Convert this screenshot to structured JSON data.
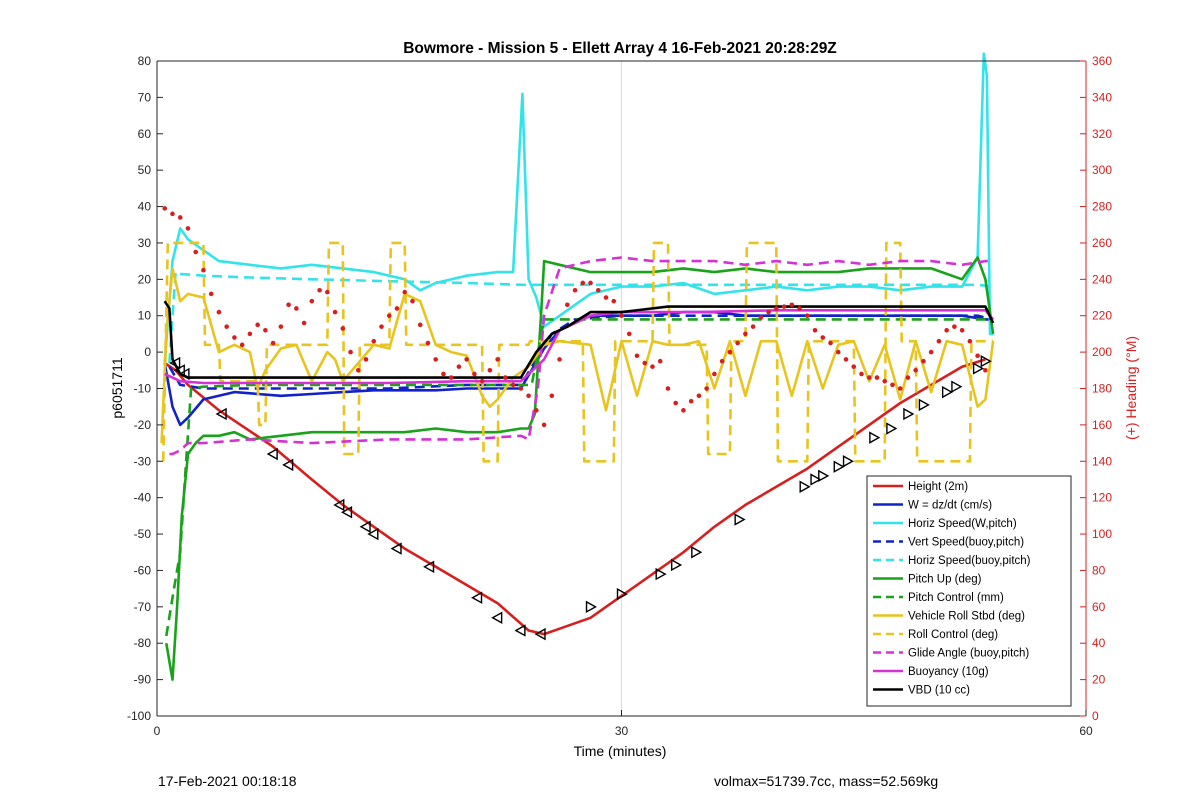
{
  "chart_data": {
    "type": "line",
    "title": "Bowmore - Mission 5 - Ellett Array 4 16-Feb-2021 20:28:29Z",
    "xlabel": "Time (minutes)",
    "ylabel_left": "p6051711",
    "ylabel_right": "(+) Heading (°M)",
    "xlim": [
      0,
      60
    ],
    "ylim_left": [
      -100,
      80
    ],
    "ylim_right": [
      0,
      360
    ],
    "xticks": [
      0,
      30,
      60
    ],
    "yticks_left": [
      80,
      70,
      60,
      50,
      40,
      30,
      20,
      10,
      0,
      -10,
      -20,
      -30,
      -40,
      -50,
      -60,
      -70,
      -80,
      -90,
      -100
    ],
    "yticks_right": [
      360,
      340,
      320,
      300,
      280,
      260,
      240,
      220,
      200,
      180,
      160,
      140,
      120,
      100,
      80,
      60,
      40,
      20,
      0
    ],
    "grid": "x-only",
    "legend_position": "lower-right",
    "colors": {
      "red": "#d71f1f",
      "blue": "#1123c8",
      "cyan": "#33e3ea",
      "green": "#1aa21a",
      "yellow": "#e7c41e",
      "magenta": "#d531d5",
      "black": "#000000",
      "heading": "#d71f1f",
      "right_axis": "#d71f1f"
    },
    "series": [
      {
        "name": "Height (2m)",
        "color": "#d71f1f",
        "dash": false,
        "x": [
          0.5,
          1.2,
          2,
          4,
          7.5,
          10,
          12,
          14,
          16,
          18,
          22,
          24,
          25,
          26,
          28,
          30,
          32,
          34,
          36,
          38,
          40,
          42,
          44,
          46,
          48,
          50,
          52,
          53.5
        ],
        "y": [
          -3,
          -5,
          -9,
          -16,
          -26,
          -35,
          -42,
          -48,
          -54,
          -59,
          -69,
          -76.5,
          -77.5,
          -76,
          -73,
          -67,
          -61,
          -55,
          -48,
          -42,
          -37,
          -32,
          -26,
          -20,
          -14,
          -9,
          -4,
          -2
        ]
      },
      {
        "name": "W = dz/dt (cm/s)",
        "color": "#1123c8",
        "dash": false,
        "x": [
          0.5,
          1,
          1.5,
          2,
          3,
          5,
          8,
          10,
          12,
          14,
          16,
          18,
          20,
          22,
          23.5,
          25,
          26,
          28,
          30,
          32,
          34,
          36,
          38,
          40,
          42,
          44,
          46,
          48,
          50,
          52,
          53.5,
          54
        ],
        "y": [
          -3,
          -15,
          -20,
          -18,
          -13,
          -11,
          -12,
          -11.5,
          -11,
          -10.5,
          -10.5,
          -10.5,
          -10,
          -10,
          -10,
          1,
          6,
          10,
          10,
          10,
          11,
          11,
          10,
          10,
          10,
          10,
          10,
          10,
          10,
          10,
          9,
          9
        ]
      },
      {
        "name": "Horiz Speed(W,pitch)",
        "color": "#33e3ea",
        "dash": false,
        "x": [
          0.5,
          1,
          1.5,
          2,
          3,
          4,
          6,
          8,
          10,
          12,
          14,
          16,
          17,
          18,
          20,
          22,
          23,
          23.6,
          24,
          24.5,
          25,
          26,
          28,
          30,
          32,
          34,
          36,
          38,
          40,
          42,
          44,
          46,
          48,
          50,
          52,
          53,
          53.4,
          53.6,
          53.8,
          54
        ],
        "y": [
          -3,
          25,
          34,
          31,
          28,
          25,
          24,
          23,
          24,
          23,
          22,
          20,
          17,
          19,
          21,
          22,
          22,
          71,
          20,
          15,
          7,
          10,
          16,
          18,
          18,
          19,
          16,
          17,
          18,
          17,
          18,
          18,
          17,
          18,
          18,
          26,
          82,
          76,
          5,
          5
        ]
      },
      {
        "name": "Vert Speed(buoy,pitch)",
        "color": "#1123c8",
        "dash": true,
        "x": [
          0.8,
          1.5,
          3,
          6,
          10,
          15,
          20,
          23.5,
          24.5,
          25.5,
          27,
          30,
          35,
          40,
          45,
          50,
          53,
          54
        ],
        "y": [
          -4,
          -9,
          -10,
          -10,
          -10,
          -10,
          -9,
          -9,
          -2,
          5,
          9,
          10,
          10,
          10,
          10,
          10,
          10,
          9
        ]
      },
      {
        "name": "Horiz Speed(buoy,pitch)",
        "color": "#33e3ea",
        "dash": true,
        "x": [
          0.8,
          1.2,
          1.5,
          3,
          6,
          10,
          15,
          20,
          23.5,
          24.5,
          30,
          35,
          40,
          45,
          50,
          53,
          54
        ],
        "y": [
          -3,
          22,
          21.5,
          21,
          20.5,
          20,
          19.5,
          19,
          18.5,
          18.5,
          18.5,
          18.5,
          18.5,
          18.5,
          18.5,
          18.5,
          18
        ]
      },
      {
        "name": "Pitch Up (deg)",
        "color": "#1aa21a",
        "dash": false,
        "x": [
          0.6,
          1,
          1.3,
          1.6,
          2,
          2.5,
          3,
          4,
          5,
          6,
          8,
          10,
          12,
          14,
          16,
          18,
          20,
          22,
          23.5,
          24,
          24.4,
          24.8,
          25,
          26,
          28,
          30,
          32,
          34,
          36,
          38,
          40,
          42,
          44,
          46,
          48,
          50,
          52,
          53,
          53.5,
          54
        ],
        "y": [
          -80,
          -90,
          -70,
          -45,
          -28,
          -25,
          -23,
          -23,
          -22,
          -24,
          -23,
          -22,
          -22,
          -22,
          -22,
          -21,
          -22,
          -22,
          -21,
          -21,
          -17,
          10,
          25,
          24,
          22,
          22,
          22,
          23,
          22,
          23,
          22,
          22,
          22,
          23,
          23,
          23,
          20,
          26,
          20,
          5
        ]
      },
      {
        "name": "Pitch Control (mm)",
        "color": "#1aa21a",
        "dash": true,
        "x": [
          0.6,
          1.1,
          1.5,
          1.8,
          2.2,
          3,
          6,
          10,
          15,
          20,
          23.5,
          24.2,
          25,
          27,
          30,
          35,
          40,
          45,
          50,
          53,
          54
        ],
        "y": [
          -78,
          -65,
          -55,
          -35,
          -10,
          -9.5,
          -9,
          -9,
          -9,
          -9,
          -9,
          -9,
          9,
          9,
          9,
          9,
          9,
          9,
          9,
          9,
          9
        ]
      },
      {
        "name": "Vehicle Roll Stbd (deg)",
        "color": "#e7c41e",
        "dash": false,
        "x": [
          0.3,
          0.6,
          1,
          1.5,
          2,
          3,
          4,
          5,
          6,
          6.5,
          7,
          8,
          9,
          10,
          11,
          11.5,
          12,
          13,
          14,
          15,
          16,
          17,
          18,
          19,
          20,
          21,
          21.5,
          22,
          23,
          24,
          25,
          26,
          28,
          29,
          30,
          31,
          32,
          33,
          34,
          35,
          36,
          37,
          38,
          39,
          40,
          41,
          42,
          43,
          44,
          45,
          46,
          47,
          48,
          49,
          50,
          51,
          52,
          53,
          53.5,
          54
        ],
        "y": [
          -25,
          5,
          23,
          14,
          16,
          15,
          0,
          2,
          0,
          -10,
          -5,
          1,
          2,
          -8,
          0,
          -2,
          -8,
          -3,
          2,
          1,
          16,
          14,
          2,
          0,
          -1,
          -12,
          -15,
          -13,
          -7,
          -4,
          2,
          3,
          2,
          -16,
          3,
          -12,
          3,
          2,
          2,
          3,
          -10,
          3,
          -12,
          3,
          3,
          -12,
          3,
          -10,
          2,
          3,
          -8,
          2,
          -13,
          3,
          -11,
          3,
          2,
          -15,
          -13,
          3
        ]
      },
      {
        "name": "Roll Control (deg)",
        "color": "#e7c41e",
        "dash": true,
        "x": [
          0.4,
          0.7,
          1.4,
          1.5,
          3,
          3.1,
          4,
          4.1,
          6.5,
          6.6,
          7,
          7.1,
          8,
          8.1,
          11,
          11.1,
          12,
          12.1,
          13,
          13.1,
          15,
          15.1,
          16,
          16.1,
          17,
          17.1,
          21,
          21.1,
          22,
          22.1,
          24,
          24.1,
          27.5,
          27.6,
          29.5,
          29.6,
          32,
          32.1,
          33,
          33.1,
          35.5,
          35.6,
          37,
          37.1,
          38,
          38.1,
          40,
          40.1,
          42,
          42.1,
          45,
          45.1,
          47,
          47.1,
          48,
          48.1,
          49,
          49.1,
          52.5,
          52.6,
          54
        ],
        "y": [
          -30,
          30,
          30,
          30,
          30,
          2,
          2,
          -8,
          -8,
          -20,
          -20,
          2,
          2,
          2,
          2,
          30,
          30,
          -28,
          -28,
          2,
          2,
          30,
          30,
          2,
          2,
          2,
          2,
          -30,
          -30,
          2,
          2,
          3,
          3,
          -30,
          -30,
          3,
          3,
          30,
          30,
          2,
          2,
          -28,
          -28,
          3,
          3,
          30,
          30,
          -30,
          -30,
          3,
          3,
          -30,
          -30,
          30,
          30,
          3,
          3,
          -30,
          -30,
          3,
          3
        ]
      },
      {
        "name": "Glide Angle (buoy,pitch)",
        "color": "#d531d5",
        "dash": true,
        "x": [
          0.8,
          1,
          1.5,
          2,
          3,
          6,
          10,
          15,
          20,
          23.5,
          24,
          24.6,
          25,
          26,
          28,
          30,
          32,
          34,
          36,
          38,
          40,
          42,
          44,
          46,
          48,
          50,
          52,
          53.5,
          54
        ],
        "y": [
          -28,
          -28,
          -27,
          -25,
          -25,
          -24,
          -25,
          -24,
          -24,
          -23,
          -24,
          -10,
          10,
          23,
          25,
          26,
          25,
          25,
          25,
          24,
          25,
          24,
          25,
          24,
          25,
          25,
          24,
          25,
          25
        ]
      },
      {
        "name": "Buoyancy (10g)",
        "color": "#d531d5",
        "dash": false,
        "x": [
          0.5,
          1.5,
          3,
          6,
          10,
          15,
          20,
          23.5,
          25,
          26,
          28,
          30,
          35,
          40,
          45,
          50,
          53.5,
          54
        ],
        "y": [
          -6,
          -8,
          -8.5,
          -8.5,
          -8.5,
          -8.5,
          -8,
          -8,
          -2,
          6,
          10,
          11,
          11,
          11.5,
          11.5,
          11.5,
          11.5,
          9
        ]
      },
      {
        "name": "VBD (10 cc)",
        "color": "#000000",
        "dash": false,
        "x": [
          0.5,
          0.8,
          1,
          1.5,
          2,
          4,
          10,
          15,
          20,
          23.5,
          24.5,
          25.5,
          26.5,
          28,
          30,
          33,
          36,
          40,
          45,
          50,
          53.5,
          54
        ],
        "y": [
          14,
          12,
          -2,
          -6,
          -7,
          -7,
          -7,
          -7,
          -7,
          -7,
          0,
          5,
          7,
          11,
          11,
          12.5,
          12.5,
          12.5,
          12.5,
          12.5,
          12.5,
          8
        ]
      }
    ],
    "heading_points": {
      "name": "Heading",
      "color": "#d71f1f",
      "x": [
        0.5,
        1,
        1.5,
        2,
        2.5,
        3,
        3.5,
        4,
        4.5,
        5,
        5.5,
        6,
        6.5,
        7,
        7.5,
        8,
        8.5,
        9,
        9.5,
        10,
        10.5,
        11,
        11.5,
        12,
        12.5,
        13,
        13.5,
        14,
        14.5,
        15,
        15.5,
        16,
        16.5,
        17,
        17.5,
        18,
        18.5,
        19,
        19.5,
        20,
        20.5,
        21,
        21.5,
        22,
        22.5,
        23,
        23.5,
        24,
        24.5,
        25,
        25.5,
        26,
        26.5,
        27,
        27.5,
        28,
        28.5,
        29,
        29.5,
        30,
        30.5,
        31,
        31.5,
        32,
        32.5,
        33,
        33.5,
        34,
        34.5,
        35,
        35.5,
        36,
        36.5,
        37,
        37.5,
        38,
        38.5,
        39,
        39.5,
        40,
        40.5,
        41,
        41.5,
        42,
        42.5,
        43,
        43.5,
        44,
        44.5,
        45,
        45.5,
        46,
        46.5,
        47,
        47.5,
        48,
        48.5,
        49,
        49.5,
        50,
        50.5,
        51,
        51.5,
        52,
        52.5,
        53,
        53.5
      ],
      "values": [
        279,
        276,
        274,
        268,
        255,
        245,
        232,
        222,
        214,
        208,
        204,
        210,
        215,
        212,
        205,
        214,
        226,
        224,
        216,
        228,
        234,
        233,
        222,
        213,
        200,
        190,
        196,
        206,
        214,
        220,
        224,
        233,
        228,
        215,
        205,
        196,
        188,
        186,
        192,
        196,
        188,
        184,
        190,
        196,
        186,
        182,
        180,
        176,
        168,
        160,
        176,
        196,
        226,
        234,
        238,
        238,
        234,
        230,
        228,
        220,
        210,
        198,
        194,
        192,
        195,
        180,
        172,
        168,
        173,
        176,
        180,
        188,
        195,
        200,
        205,
        210,
        214,
        219,
        222,
        224,
        225,
        226,
        224,
        220,
        212,
        208,
        205,
        200,
        196,
        192,
        188,
        186,
        186,
        184,
        182,
        180,
        186,
        190,
        195,
        200,
        206,
        212,
        214,
        212,
        206,
        198,
        190
      ]
    },
    "vertex_markers": {
      "x": [
        1.2,
        1.5,
        1.8,
        4.2,
        7.5,
        8.5,
        11.8,
        12.3,
        13.5,
        14,
        15.5,
        17.6,
        20.7,
        22,
        23.5,
        24.8,
        28,
        30,
        32.5,
        33.5,
        34.8,
        37.6,
        41.8,
        42.5,
        43,
        44,
        44.6,
        46.3,
        47.4,
        48.5,
        49.5,
        51,
        51.6,
        53,
        53.5
      ],
      "y": [
        -3,
        -5,
        -6,
        -17,
        -28,
        -31,
        -42,
        -44,
        -48,
        -50,
        -54,
        -59,
        -67.5,
        -73,
        -76.5,
        -77.5,
        -70,
        -66.5,
        -61,
        -58.5,
        -55,
        -46,
        -37,
        -35,
        -34,
        -31.5,
        -30,
        -23.5,
        -21,
        -17,
        -14.5,
        -11,
        -9.5,
        -4.5,
        -2.5
      ]
    }
  },
  "footer": {
    "left": "17-Feb-2021 00:18:18",
    "right": "volmax=51739.7cc, mass=52.569kg"
  }
}
